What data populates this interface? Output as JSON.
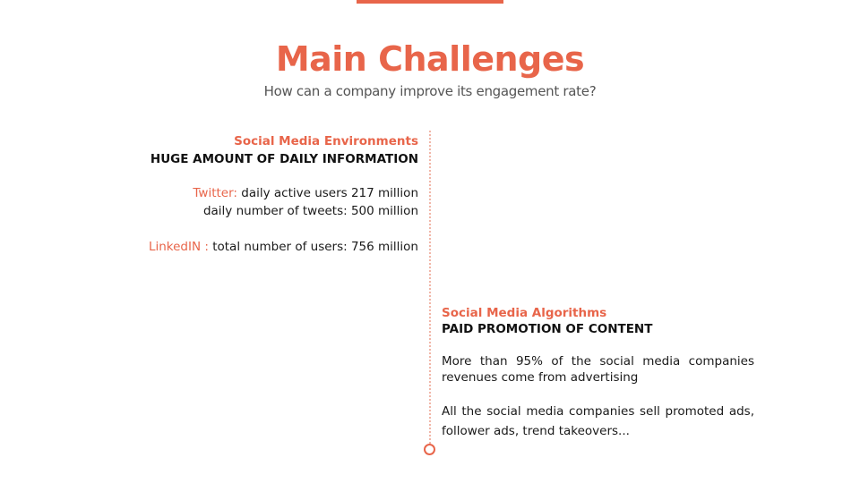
{
  "title": "Main Challenges",
  "subtitle": "How can a company improve its engagement rate?",
  "left_section": {
    "heading": "Social Media Environments",
    "subheading": "HUGE AMOUNT OF DAILY INFORMATION",
    "twitter_label": "Twitter:",
    "twitter_line1": "daily active users 217 million",
    "twitter_line2": "daily number of tweets:  500 million",
    "linkedin_label": "LinkedIN :",
    "linkedin_text": "total number of users: 756 million"
  },
  "right_section": {
    "heading": "Social Media Algorithms",
    "subheading": "PAID PROMOTION OF CONTENT",
    "paragraph1": "More than 95% of the social media companies revenues come from advertising",
    "paragraph2": "All the social media companies sell promoted ads, follower ads, trend takeovers..."
  },
  "colors": {
    "accent": "#e8654a",
    "text": "#1a1a1a",
    "subtitle": "#555555"
  }
}
